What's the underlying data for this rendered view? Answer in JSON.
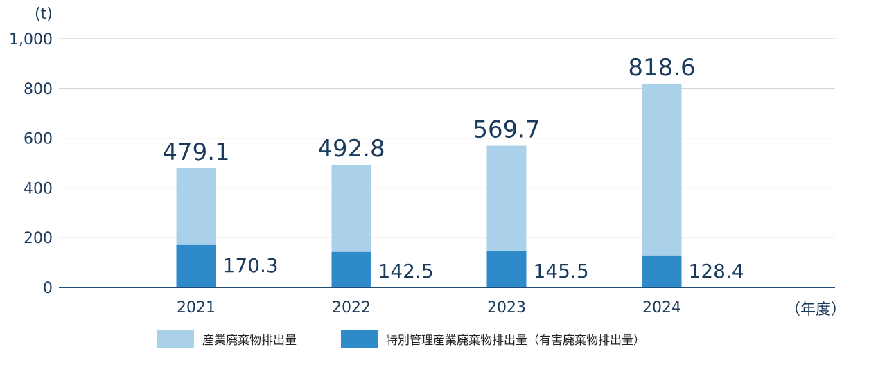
{
  "chart_data": {
    "type": "bar",
    "title": "",
    "ylabel": "(t)",
    "xlabel": "（年度）",
    "ylim": [
      0,
      1000
    ],
    "yticks": [
      "0",
      "200",
      "400",
      "600",
      "800",
      "1,000"
    ],
    "ytick_values": [
      0,
      200,
      400,
      600,
      800,
      1000
    ],
    "categories": [
      "2021",
      "2022",
      "2023",
      "2024"
    ],
    "series": [
      {
        "name": "特別管理産業廃棄物排出量（有害廃棄物排出量）",
        "values": [
          170.3,
          142.5,
          145.5,
          128.4
        ],
        "color": "#2e8ac9"
      },
      {
        "name": "産業廃棄物排出量",
        "totals": [
          479.1,
          492.8,
          569.7,
          818.6
        ],
        "color": "#abd1ea"
      }
    ],
    "total_labels": [
      "479.1",
      "492.8",
      "569.7",
      "818.6"
    ],
    "special_labels": [
      "170.3",
      "142.5",
      "145.5",
      "128.4"
    ],
    "stacked": true,
    "grid": true,
    "legend_position": "bottom",
    "colors": {
      "axis": "#1f4e79",
      "grid": "#c8c8c8",
      "text": "#1a3a5c"
    }
  }
}
